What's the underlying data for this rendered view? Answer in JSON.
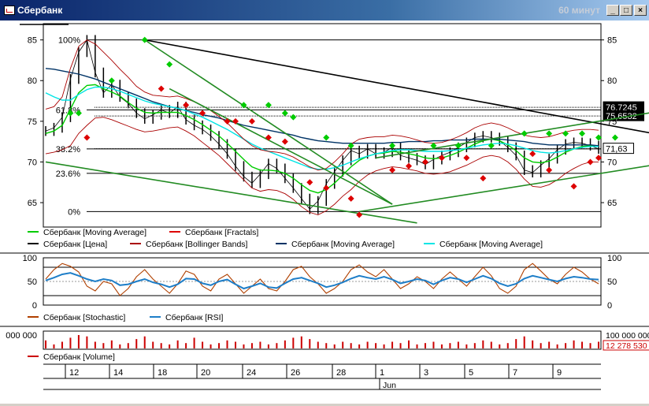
{
  "window": {
    "title": "Сбербанк",
    "period": "60 минут",
    "minimize_symbol": "_",
    "maximize_symbol": "□",
    "close_symbol": "×"
  },
  "colors": {
    "price": "#000000",
    "ma_green": "#00cc00",
    "ma_blue": "#003366",
    "ma_cyan": "#00e5e5",
    "bollinger": "#aa0000",
    "fractal_up": "#00cc00",
    "fractal_down": "#dd0000",
    "trend_green": "#228b22",
    "stochastic": "#b04000",
    "rsi": "#1e7ec8",
    "volume": "#cc0000"
  },
  "chart_data": [
    {
      "type": "line",
      "panel": "price",
      "ylim": [
        62,
        87
      ],
      "y_ticks": [
        65,
        70,
        75,
        80,
        85
      ],
      "x_ticks": [
        "12",
        "14",
        "18",
        "20",
        "24",
        "26",
        "28",
        "1",
        "3",
        "5",
        "7",
        "9"
      ],
      "month_label": "Jun",
      "grid": false,
      "fibonacci_levels": [
        {
          "label": "100%",
          "value": 85.0
        },
        {
          "label": "61.8%",
          "value": 76.4
        },
        {
          "label": "38.2%",
          "value": 71.6
        },
        {
          "label": "23.6%",
          "value": 68.6
        },
        {
          "label": "0%",
          "value": 63.9
        }
      ],
      "price_labels": [
        {
          "text": "76,7245",
          "value": 76.72
        },
        {
          "text": "75,6532",
          "value": 75.65
        },
        {
          "text": "71,63",
          "value": 71.63
        }
      ],
      "series": [
        {
          "name": "Сбербанк [Цена]",
          "color": "#000000",
          "values": [
            73.8,
            74.2,
            75.5,
            80.2,
            83.5,
            85.0,
            81.0,
            78.5,
            79.5,
            78.0,
            77.2,
            76.0,
            75.3,
            75.8,
            76.4,
            76.0,
            76.8,
            75.2,
            74.5,
            74.0,
            73.2,
            72.2,
            71.0,
            69.5,
            68.2,
            67.4,
            68.5,
            69.8,
            69.2,
            68.0,
            66.8,
            65.5,
            64.2,
            65.2,
            67.3,
            68.8,
            70.2,
            71.4,
            71.0,
            71.6,
            71.0,
            71.2,
            71.8,
            70.8,
            70.5,
            70.2,
            69.7,
            70.3,
            70.8,
            71.2,
            71.8,
            72.4,
            73.0,
            73.2,
            73.0,
            72.6,
            71.8,
            70.8,
            69.0,
            68.7,
            69.6,
            70.4,
            71.5,
            72.2,
            72.4,
            72.3,
            72.0,
            71.6
          ]
        },
        {
          "name": "Сбербанк [Moving Average]",
          "color": "#00cc00",
          "values": [
            73.5,
            73.8,
            74.5,
            76.5,
            78.5,
            79.4,
            79.5,
            79.0,
            78.6,
            78.1,
            77.3,
            76.6,
            76.1,
            76.0,
            76.1,
            76.1,
            76.1,
            75.7,
            75.2,
            74.6,
            73.9,
            73.2,
            72.3,
            71.3,
            70.3,
            69.4,
            69.0,
            69.0,
            68.9,
            68.6,
            68.0,
            67.2,
            66.5,
            66.2,
            66.6,
            67.4,
            68.4,
            69.4,
            70.2,
            70.7,
            71.0,
            71.1,
            71.3,
            71.2,
            71.0,
            70.8,
            70.5,
            70.4,
            70.5,
            70.8,
            71.2,
            71.7,
            72.2,
            72.6,
            72.8,
            72.6,
            72.1,
            71.4,
            70.5,
            70.0,
            69.9,
            70.1,
            70.6,
            71.2,
            71.6,
            71.9,
            72.0,
            71.9
          ]
        },
        {
          "name": "Сбербанк [Moving Average]",
          "color": "#003366",
          "values": [
            81.5,
            81.4,
            81.2,
            81.0,
            80.8,
            80.5,
            80.2,
            79.8,
            79.4,
            79.0,
            78.6,
            78.2,
            77.8,
            77.4,
            77.1,
            76.8,
            76.6,
            76.3,
            76.1,
            75.8,
            75.6,
            75.4,
            75.1,
            74.8,
            74.5,
            74.3,
            74.1,
            73.9,
            73.7,
            73.5,
            73.3,
            73.0,
            72.8,
            72.6,
            72.5,
            72.4,
            72.3,
            72.3,
            72.3,
            72.3,
            72.3,
            72.3,
            72.4,
            72.4,
            72.5,
            72.5,
            72.5,
            72.6,
            72.6,
            72.7,
            72.7,
            72.7,
            72.8,
            72.8,
            72.8,
            72.8,
            72.7,
            72.6,
            72.5,
            72.3,
            72.2,
            72.1,
            72.1,
            72.1,
            72.1,
            72.1,
            72.1,
            72.0
          ]
        },
        {
          "name": "Сбербанк [Moving Average]",
          "color": "#00e5e5",
          "values": [
            78.5,
            78.0,
            77.6,
            77.6,
            78.3,
            78.9,
            79.2,
            79.2,
            79.0,
            78.7,
            78.3,
            77.9,
            77.5,
            77.2,
            77.0,
            76.8,
            76.6,
            76.3,
            75.9,
            75.5,
            75.0,
            74.5,
            74.0,
            73.4,
            72.8,
            72.2,
            71.7,
            71.3,
            70.9,
            70.5,
            70.1,
            69.7,
            69.3,
            69.1,
            69.1,
            69.3,
            69.6,
            70.0,
            70.4,
            70.7,
            71.0,
            71.2,
            71.4,
            71.5,
            71.5,
            71.4,
            71.3,
            71.3,
            71.3,
            71.4,
            71.5,
            71.7,
            71.9,
            72.1,
            72.2,
            72.3,
            72.2,
            72.0,
            71.7,
            71.4,
            71.2,
            71.1,
            71.2,
            71.4,
            71.6,
            71.8,
            71.9,
            71.9
          ]
        },
        {
          "name": "Сбербанк [Bollinger Bands]",
          "color": "#aa0000",
          "values": [
            76.5,
            76.8,
            78.0,
            81.5,
            84.2,
            85.0,
            84.5,
            83.5,
            82.5,
            81.4,
            80.4,
            79.3,
            78.6,
            78.2,
            78.1,
            78.0,
            78.1,
            77.8,
            77.4,
            76.9,
            76.3,
            75.6,
            74.8,
            73.8,
            72.8,
            72.0,
            71.5,
            71.3,
            71.2,
            71.0,
            70.6,
            70.0,
            69.4,
            69.0,
            69.2,
            70.0,
            71.0,
            72.2,
            72.8,
            73.0,
            73.1,
            73.1,
            73.3,
            73.2,
            73.0,
            72.7,
            72.4,
            72.3,
            72.4,
            72.7,
            73.1,
            73.6,
            74.2,
            74.6,
            74.8,
            74.6,
            74.2,
            73.7,
            73.3,
            73.1,
            73.0,
            73.1,
            73.4,
            73.7,
            73.9,
            74.0,
            74.0,
            73.9
          ]
        },
        {
          "name": "Сбербанк [Bollinger Bands]",
          "color": "#aa0000",
          "values": [
            71.0,
            71.2,
            71.5,
            72.0,
            73.5,
            74.5,
            75.4,
            75.5,
            75.2,
            74.8,
            74.4,
            74.0,
            73.7,
            73.8,
            74.0,
            74.2,
            74.3,
            73.8,
            73.2,
            72.4,
            71.6,
            70.8,
            69.8,
            68.8,
            67.8,
            66.8,
            66.4,
            66.6,
            66.5,
            66.1,
            65.4,
            64.5,
            63.8,
            63.5,
            64.0,
            64.8,
            65.8,
            66.6,
            67.6,
            68.4,
            68.9,
            69.2,
            69.4,
            69.3,
            69.1,
            68.9,
            68.6,
            68.5,
            68.6,
            68.8,
            69.2,
            69.6,
            70.1,
            70.6,
            70.8,
            70.6,
            70.0,
            69.1,
            67.9,
            67.0,
            66.9,
            67.2,
            67.8,
            68.6,
            69.2,
            69.7,
            70.0,
            70.0
          ]
        }
      ],
      "fractals_up": [
        [
          3,
          76.0
        ],
        [
          4,
          76.0
        ],
        [
          8,
          80.0
        ],
        [
          12,
          85.0
        ],
        [
          15,
          82.0
        ],
        [
          24,
          77.0
        ],
        [
          27,
          77.0
        ],
        [
          29,
          76.0
        ],
        [
          30,
          75.5
        ],
        [
          34,
          73.0
        ],
        [
          37,
          72.0
        ],
        [
          42,
          72.0
        ],
        [
          47,
          72.0
        ],
        [
          50,
          72.0
        ],
        [
          54,
          72.0
        ],
        [
          58,
          73.5
        ],
        [
          61,
          73.5
        ],
        [
          63,
          73.5
        ],
        [
          65,
          73.5
        ],
        [
          67,
          73.0
        ],
        [
          69,
          73.0
        ]
      ],
      "fractals_down": [
        [
          5,
          73.0
        ],
        [
          14,
          79.0
        ],
        [
          17,
          77.0
        ],
        [
          19,
          76.0
        ],
        [
          22,
          75.0
        ],
        [
          23,
          75.0
        ],
        [
          25,
          75.0
        ],
        [
          27,
          73.0
        ],
        [
          29,
          72.5
        ],
        [
          32,
          67.5
        ],
        [
          34,
          66.8
        ],
        [
          37,
          65.5
        ],
        [
          38,
          63.5
        ],
        [
          42,
          69.0
        ],
        [
          44,
          69.5
        ],
        [
          46,
          70.0
        ],
        [
          48,
          70.5
        ],
        [
          51,
          70.5
        ],
        [
          53,
          68.0
        ],
        [
          59,
          71.0
        ],
        [
          61,
          69.0
        ],
        [
          64,
          67.0
        ],
        [
          66,
          70.0
        ],
        [
          67,
          70.5
        ]
      ],
      "trend_lines": [
        {
          "color": "#000000",
          "from": [
            12,
            85.0
          ],
          "to": [
            79,
            72.5
          ]
        },
        {
          "color": "#228b22",
          "from": [
            12,
            85.0
          ],
          "to": [
            42,
            64.8
          ]
        },
        {
          "color": "#228b22",
          "from": [
            15,
            79.0
          ],
          "to": [
            42,
            64.8
          ]
        },
        {
          "color": "#228b22",
          "from": [
            0,
            70.0
          ],
          "to": [
            45,
            62.5
          ]
        },
        {
          "color": "#228b22",
          "from": [
            38,
            63.9
          ],
          "to": [
            76,
            70.0
          ]
        },
        {
          "color": "#228b22",
          "from": [
            40,
            70.5
          ],
          "to": [
            76,
            76.5
          ]
        }
      ]
    },
    {
      "type": "line",
      "panel": "oscillator",
      "ylim": [
        0,
        100
      ],
      "y_ticks": [
        0,
        50,
        100
      ],
      "levels": [
        20,
        80
      ],
      "series": [
        {
          "name": "Сбербанк [Stochastic]",
          "color": "#b04000",
          "values": [
            55,
            75,
            88,
            82,
            70,
            40,
            30,
            50,
            45,
            20,
            35,
            60,
            75,
            55,
            40,
            25,
            45,
            72,
            65,
            40,
            30,
            55,
            65,
            45,
            25,
            40,
            55,
            35,
            30,
            50,
            75,
            82,
            60,
            45,
            25,
            35,
            50,
            75,
            85,
            70,
            60,
            75,
            55,
            35,
            45,
            60,
            50,
            35,
            55,
            70,
            55,
            40,
            60,
            80,
            62,
            35,
            25,
            40,
            75,
            88,
            72,
            55,
            45,
            65,
            80,
            70,
            55,
            45
          ]
        },
        {
          "name": "Сбербанк [RSI]",
          "color": "#1e7ec8",
          "values": [
            52,
            58,
            65,
            68,
            62,
            55,
            50,
            55,
            52,
            42,
            44,
            50,
            55,
            48,
            44,
            38,
            44,
            56,
            55,
            46,
            42,
            50,
            54,
            44,
            35,
            40,
            46,
            38,
            36,
            46,
            55,
            58,
            52,
            46,
            38,
            42,
            48,
            56,
            62,
            58,
            55,
            60,
            54,
            46,
            50,
            55,
            52,
            44,
            52,
            58,
            55,
            48,
            55,
            62,
            56,
            46,
            40,
            45,
            56,
            62,
            58,
            54,
            50,
            56,
            60,
            58,
            55,
            54
          ]
        }
      ]
    },
    {
      "type": "bar",
      "panel": "volume",
      "ylim": [
        0,
        12278530
      ],
      "y_tick_label": "000 000",
      "y_tick_label_right": "100 000 000",
      "last_label": "12 278 530",
      "series": [
        {
          "name": "Сбербанк [Volume]",
          "color": "#cc0000",
          "values": [
            0.6,
            0.3,
            0.5,
            0.8,
            1.0,
            0.9,
            0.5,
            0.4,
            0.6,
            0.3,
            0.4,
            0.7,
            0.9,
            0.5,
            0.4,
            0.3,
            0.6,
            0.4,
            0.8,
            0.5,
            0.3,
            0.4,
            0.6,
            0.5,
            0.3,
            0.4,
            0.5,
            0.3,
            0.4,
            0.6,
            0.8,
            0.9,
            0.7,
            0.5,
            0.4,
            0.3,
            0.5,
            0.4,
            0.3,
            0.5,
            0.4,
            0.3,
            0.5,
            0.4,
            0.6,
            0.3,
            0.4,
            0.5,
            0.3,
            0.4,
            0.5,
            0.3,
            0.4,
            0.6,
            0.5,
            0.3,
            0.4,
            0.7,
            0.9,
            0.6,
            0.4,
            0.5,
            0.3,
            0.4,
            0.6,
            0.5,
            0.4,
            0.5
          ]
        }
      ]
    }
  ],
  "legend_price": [
    {
      "label": "Сбербанк [Moving Average]",
      "color": "#00cc00"
    },
    {
      "label": "Сбербанк [Fractals]",
      "color": "#dd0000"
    },
    {
      "label": "Сбербанк [Цена]",
      "color": "#000000"
    },
    {
      "label": "Сбербанк [Bollinger Bands]",
      "color": "#aa0000"
    },
    {
      "label": "Сбербанк [Moving Average]",
      "color": "#003366"
    },
    {
      "label": "Сбербанк [Moving Average]",
      "color": "#00e5e5"
    }
  ],
  "legend_osc": [
    {
      "label": "Сбербанк [Stochastic]",
      "color": "#b04000"
    },
    {
      "label": "Сбербанк [RSI]",
      "color": "#1e7ec8"
    }
  ],
  "legend_vol": [
    {
      "label": "Сбербанк [Volume]",
      "color": "#cc0000"
    }
  ]
}
